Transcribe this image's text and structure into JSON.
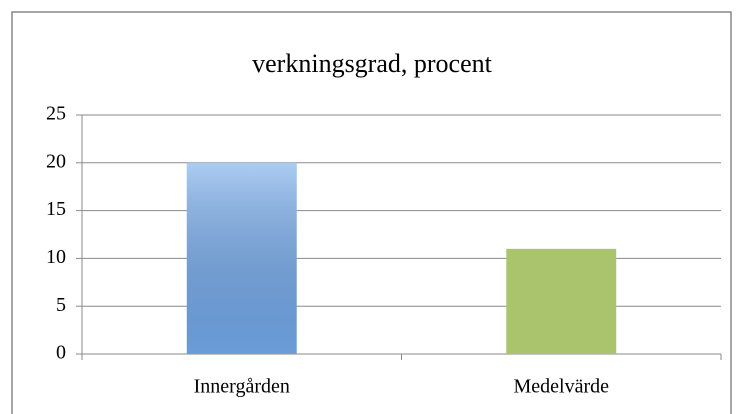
{
  "chart_data": {
    "type": "bar",
    "title": "verkningsgrad, procent",
    "categories": [
      "Innergården",
      "Medelvärde"
    ],
    "values": [
      20,
      11
    ],
    "colors": [
      "#74aaec",
      "#a9c46c"
    ],
    "ylim": [
      0,
      25
    ],
    "yticks": [
      0,
      5,
      10,
      15,
      20,
      25
    ],
    "grid": true
  }
}
